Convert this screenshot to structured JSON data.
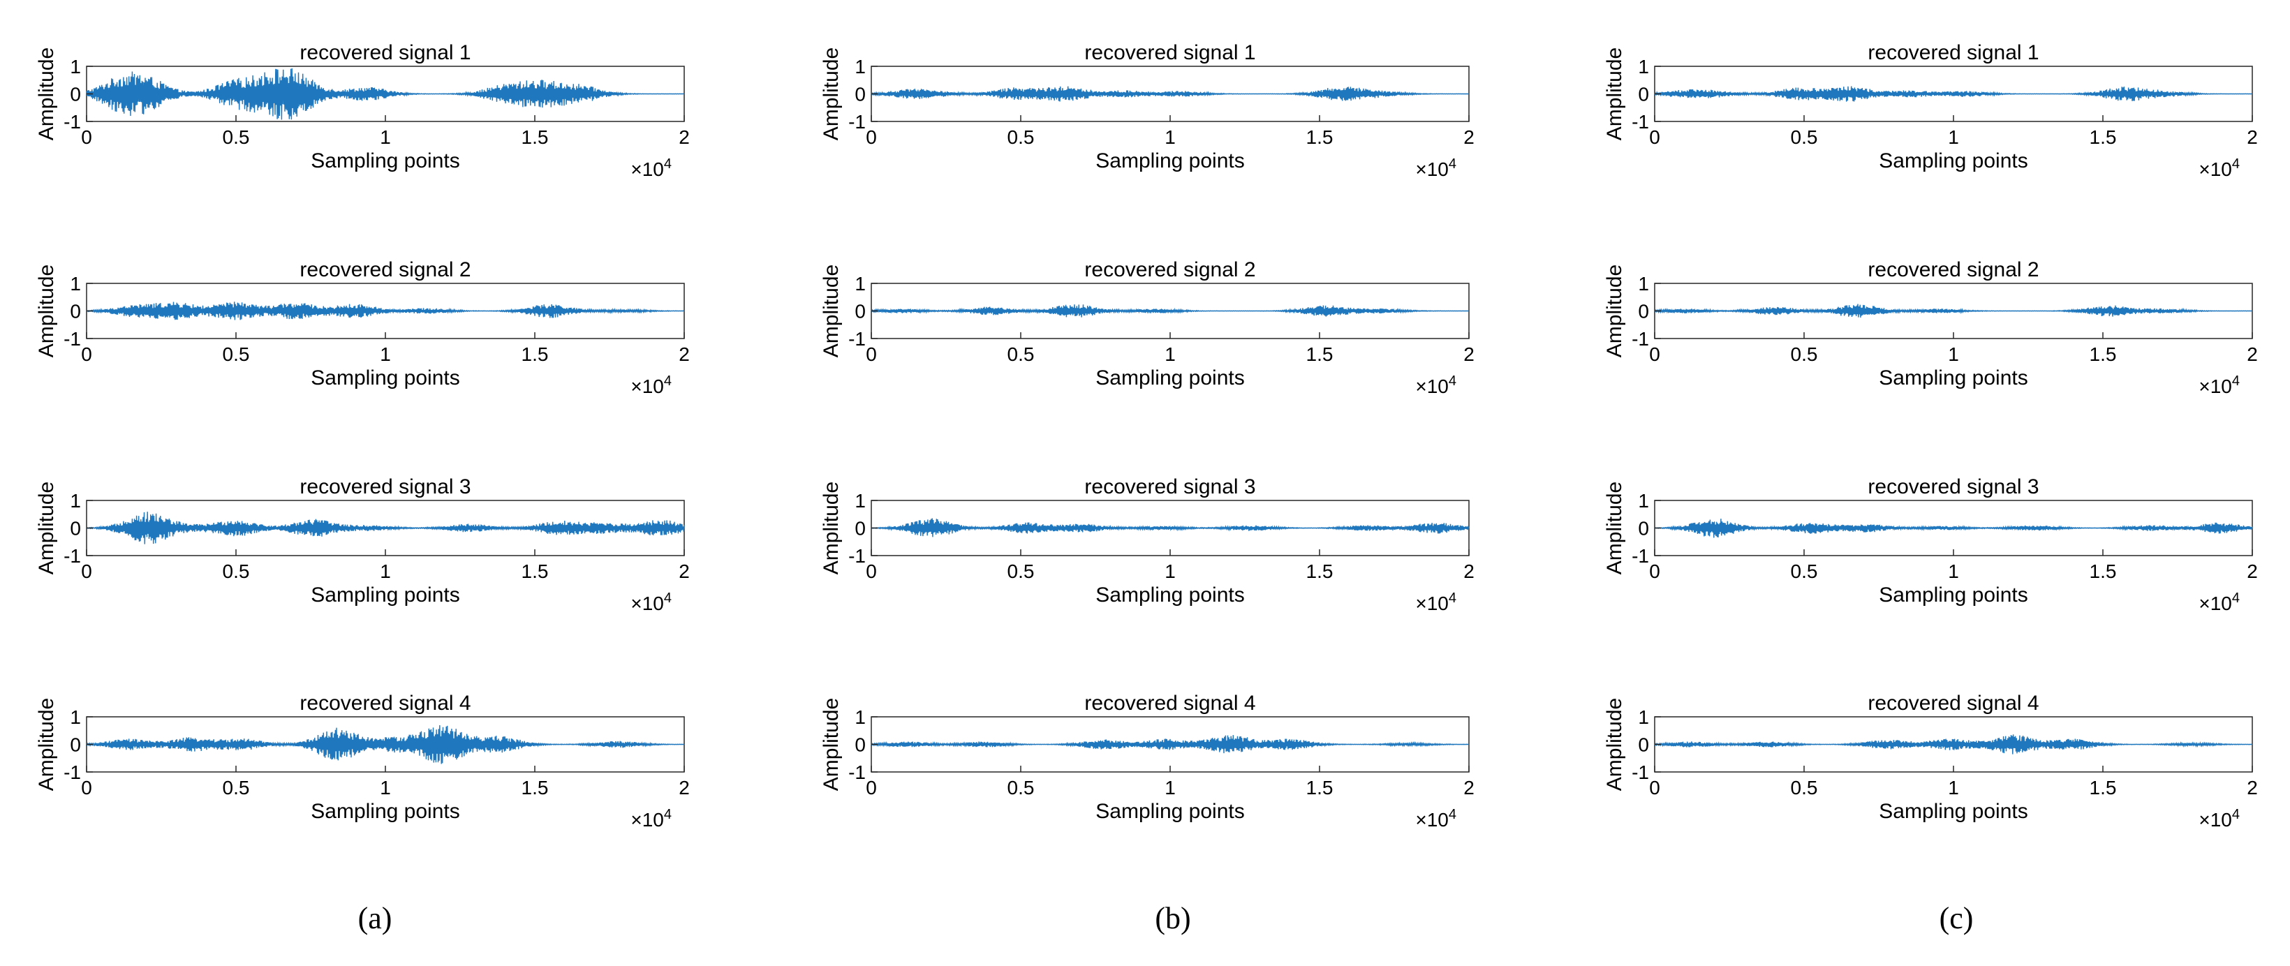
{
  "figure": {
    "panel_captions": [
      "(a)",
      "(b)",
      "(c)"
    ]
  },
  "chart_data": [
    {
      "type": "line",
      "panel": "(a)",
      "title": "recovered signal 1",
      "xlabel": "Sampling points",
      "ylabel": "Amplitude",
      "xlim": [
        0,
        20000
      ],
      "ylim": [
        -1,
        1
      ],
      "xticks": [
        "0",
        "0.5",
        "1",
        "1.5",
        "2"
      ],
      "yticks": [
        "-1",
        "0",
        "1"
      ],
      "x_exponent": "×10^4",
      "color": "#1f77bd",
      "envelope": [
        [
          1000,
          0.35
        ],
        [
          1600,
          0.38
        ],
        [
          2200,
          0.3
        ],
        [
          4800,
          0.28
        ],
        [
          5300,
          0.25
        ],
        [
          6400,
          0.55
        ],
        [
          6800,
          0.35
        ],
        [
          7400,
          0.22
        ],
        [
          9400,
          0.25
        ],
        [
          14000,
          0.3
        ],
        [
          15200,
          0.42
        ],
        [
          16500,
          0.3
        ]
      ]
    },
    {
      "type": "line",
      "panel": "(a)",
      "title": "recovered signal 2",
      "xlabel": "Sampling points",
      "ylabel": "Amplitude",
      "xlim": [
        0,
        20000
      ],
      "ylim": [
        -1,
        1
      ],
      "xticks": [
        "0",
        "0.5",
        "1",
        "1.5",
        "2"
      ],
      "yticks": [
        "-1",
        "0",
        "1"
      ],
      "x_exponent": "×10^4",
      "color": "#1f77bd",
      "envelope": [
        [
          1600,
          0.2
        ],
        [
          3000,
          0.3
        ],
        [
          5000,
          0.33
        ],
        [
          7000,
          0.3
        ],
        [
          9000,
          0.25
        ],
        [
          11400,
          0.1
        ],
        [
          15500,
          0.25
        ],
        [
          18000,
          0.05
        ]
      ]
    },
    {
      "type": "line",
      "panel": "(a)",
      "title": "recovered signal 3",
      "xlabel": "Sampling points",
      "ylabel": "Amplitude",
      "xlim": [
        0,
        20000
      ],
      "ylim": [
        -1,
        1
      ],
      "xticks": [
        "0",
        "0.5",
        "1",
        "1.5",
        "2"
      ],
      "yticks": [
        "-1",
        "0",
        "1"
      ],
      "x_exponent": "×10^4",
      "color": "#1f77bd",
      "envelope": [
        [
          2000,
          0.58
        ],
        [
          3300,
          0.1
        ],
        [
          5000,
          0.3
        ],
        [
          7600,
          0.33
        ],
        [
          9500,
          0.1
        ],
        [
          12800,
          0.15
        ],
        [
          15800,
          0.25
        ],
        [
          17300,
          0.18
        ],
        [
          19200,
          0.3
        ]
      ]
    },
    {
      "type": "line",
      "panel": "(a)",
      "title": "recovered signal 4",
      "xlabel": "Sampling points",
      "ylabel": "Amplitude",
      "xlim": [
        0,
        20000
      ],
      "ylim": [
        -1,
        1
      ],
      "xticks": [
        "0",
        "0.5",
        "1",
        "1.5",
        "2"
      ],
      "yticks": [
        "-1",
        "0",
        "1"
      ],
      "x_exponent": "×10^4",
      "color": "#1f77bd",
      "envelope": [
        [
          1400,
          0.2
        ],
        [
          3500,
          0.25
        ],
        [
          5200,
          0.2
        ],
        [
          8400,
          0.6
        ],
        [
          10300,
          0.25
        ],
        [
          11900,
          0.7
        ],
        [
          13800,
          0.3
        ],
        [
          17800,
          0.12
        ]
      ]
    },
    {
      "type": "line",
      "panel": "(b)",
      "title": "recovered signal 1",
      "xlabel": "Sampling points",
      "ylabel": "Amplitude",
      "xlim": [
        0,
        20000
      ],
      "ylim": [
        -1,
        1
      ],
      "xticks": [
        "0",
        "0.5",
        "1",
        "1.5",
        "2"
      ],
      "yticks": [
        "-1",
        "0",
        "1"
      ],
      "x_exponent": "×10^4",
      "color": "#1f77bd",
      "envelope": [
        [
          1200,
          0.12
        ],
        [
          2000,
          0.1
        ],
        [
          4800,
          0.22
        ],
        [
          6500,
          0.28
        ],
        [
          8500,
          0.12
        ],
        [
          10400,
          0.1
        ],
        [
          15700,
          0.25
        ],
        [
          17000,
          0.1
        ]
      ]
    },
    {
      "type": "line",
      "panel": "(b)",
      "title": "recovered signal 2",
      "xlabel": "Sampling points",
      "ylabel": "Amplitude",
      "xlim": [
        0,
        20000
      ],
      "ylim": [
        -1,
        1
      ],
      "xticks": [
        "0",
        "0.5",
        "1",
        "1.5",
        "2"
      ],
      "yticks": [
        "-1",
        "0",
        "1"
      ],
      "x_exponent": "×10^4",
      "color": "#1f77bd",
      "envelope": [
        [
          1000,
          0.08
        ],
        [
          4000,
          0.15
        ],
        [
          6800,
          0.25
        ],
        [
          9500,
          0.08
        ],
        [
          15200,
          0.2
        ],
        [
          17000,
          0.08
        ]
      ]
    },
    {
      "type": "line",
      "panel": "(b)",
      "title": "recovered signal 3",
      "xlabel": "Sampling points",
      "ylabel": "Amplitude",
      "xlim": [
        0,
        20000
      ],
      "ylim": [
        -1,
        1
      ],
      "xticks": [
        "0",
        "0.5",
        "1",
        "1.5",
        "2"
      ],
      "yticks": [
        "-1",
        "0",
        "1"
      ],
      "x_exponent": "×10^4",
      "color": "#1f77bd",
      "envelope": [
        [
          2000,
          0.35
        ],
        [
          5200,
          0.2
        ],
        [
          7100,
          0.15
        ],
        [
          9700,
          0.07
        ],
        [
          12700,
          0.1
        ],
        [
          16600,
          0.1
        ],
        [
          18900,
          0.2
        ]
      ]
    },
    {
      "type": "line",
      "panel": "(b)",
      "title": "recovered signal 4",
      "xlabel": "Sampling points",
      "ylabel": "Amplitude",
      "xlim": [
        0,
        20000
      ],
      "ylim": [
        -1,
        1
      ],
      "xticks": [
        "0",
        "0.5",
        "1",
        "1.5",
        "2"
      ],
      "yticks": [
        "-1",
        "0",
        "1"
      ],
      "x_exponent": "×10^4",
      "color": "#1f77bd",
      "envelope": [
        [
          1200,
          0.1
        ],
        [
          3800,
          0.1
        ],
        [
          7800,
          0.18
        ],
        [
          9900,
          0.2
        ],
        [
          12000,
          0.35
        ],
        [
          14000,
          0.2
        ],
        [
          18000,
          0.05
        ]
      ]
    },
    {
      "type": "line",
      "panel": "(c)",
      "title": "recovered signal 1",
      "xlabel": "Sampling points",
      "ylabel": "Amplitude",
      "xlim": [
        0,
        20000
      ],
      "ylim": [
        -1,
        1
      ],
      "xticks": [
        "0",
        "0.5",
        "1",
        "1.5",
        "2"
      ],
      "yticks": [
        "-1",
        "0",
        "1"
      ],
      "x_exponent": "×10^4",
      "color": "#1f77bd",
      "envelope": [
        [
          1000,
          0.12
        ],
        [
          2000,
          0.1
        ],
        [
          4800,
          0.22
        ],
        [
          6500,
          0.28
        ],
        [
          8500,
          0.12
        ],
        [
          10400,
          0.1
        ],
        [
          15700,
          0.25
        ],
        [
          17000,
          0.1
        ]
      ]
    },
    {
      "type": "line",
      "panel": "(c)",
      "title": "recovered signal 2",
      "xlabel": "Sampling points",
      "ylabel": "Amplitude",
      "xlim": [
        0,
        20000
      ],
      "ylim": [
        -1,
        1
      ],
      "xticks": [
        "0",
        "0.5",
        "1",
        "1.5",
        "2"
      ],
      "yticks": [
        "-1",
        "0",
        "1"
      ],
      "x_exponent": "×10^4",
      "color": "#1f77bd",
      "envelope": [
        [
          1000,
          0.08
        ],
        [
          4000,
          0.15
        ],
        [
          6800,
          0.25
        ],
        [
          9500,
          0.08
        ],
        [
          15200,
          0.2
        ],
        [
          17000,
          0.08
        ]
      ]
    },
    {
      "type": "line",
      "panel": "(c)",
      "title": "recovered signal 3",
      "xlabel": "Sampling points",
      "ylabel": "Amplitude",
      "xlim": [
        0,
        20000
      ],
      "ylim": [
        -1,
        1
      ],
      "xticks": [
        "0",
        "0.5",
        "1",
        "1.5",
        "2"
      ],
      "yticks": [
        "-1",
        "0",
        "1"
      ],
      "x_exponent": "×10^4",
      "color": "#1f77bd",
      "envelope": [
        [
          2000,
          0.35
        ],
        [
          5200,
          0.2
        ],
        [
          7100,
          0.15
        ],
        [
          9700,
          0.07
        ],
        [
          12700,
          0.1
        ],
        [
          16600,
          0.1
        ],
        [
          18900,
          0.2
        ]
      ]
    },
    {
      "type": "line",
      "panel": "(c)",
      "title": "recovered signal 4",
      "xlabel": "Sampling points",
      "ylabel": "Amplitude",
      "xlim": [
        0,
        20000
      ],
      "ylim": [
        -1,
        1
      ],
      "xticks": [
        "0",
        "0.5",
        "1",
        "1.5",
        "2"
      ],
      "yticks": [
        "-1",
        "0",
        "1"
      ],
      "x_exponent": "×10^4",
      "color": "#1f77bd",
      "envelope": [
        [
          1200,
          0.1
        ],
        [
          3800,
          0.1
        ],
        [
          7800,
          0.18
        ],
        [
          9900,
          0.2
        ],
        [
          12000,
          0.35
        ],
        [
          14000,
          0.2
        ],
        [
          18000,
          0.05
        ]
      ]
    }
  ]
}
